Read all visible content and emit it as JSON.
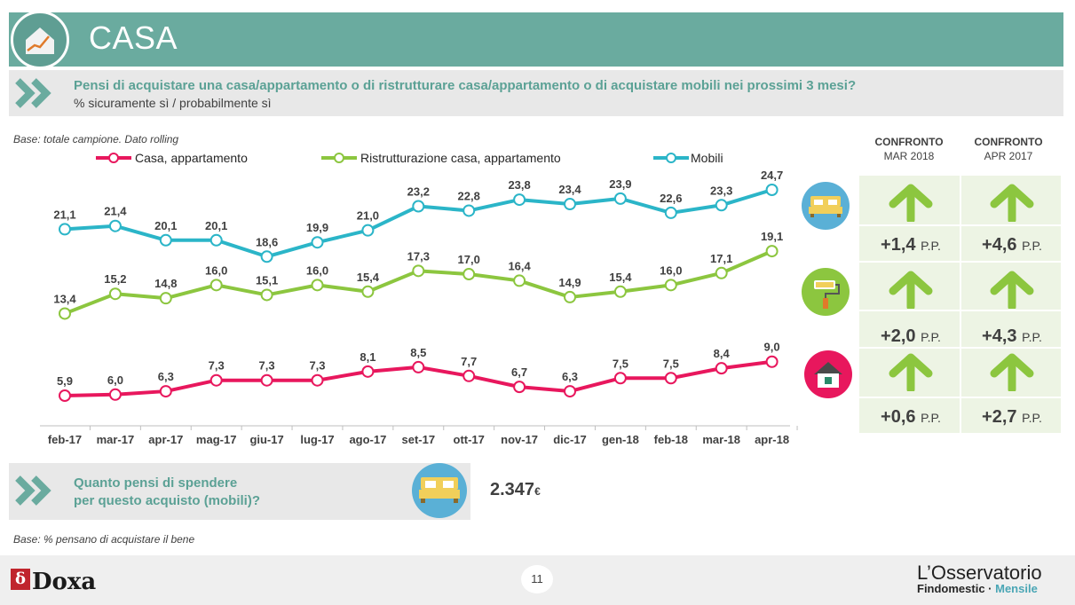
{
  "header": {
    "title": "CASA"
  },
  "question": {
    "text": "Pensi di acquistare una casa/appartamento o di ristrutturare casa/appartamento o di acquistare mobili nei prossimi 3 mesi?",
    "sub": "% sicuramente sì / probabilmente sì"
  },
  "base_note": "Base: totale campione. Dato rolling",
  "base_note2": "Base: % pensano di acquistare il bene",
  "chart_data": {
    "type": "line",
    "categories": [
      "feb-17",
      "mar-17",
      "apr-17",
      "mag-17",
      "giu-17",
      "lug-17",
      "ago-17",
      "set-17",
      "ott-17",
      "nov-17",
      "dic-17",
      "gen-18",
      "feb-18",
      "mar-18",
      "apr-18"
    ],
    "series": [
      {
        "name": "Casa, appartamento",
        "color": "#e8175d",
        "values": [
          5.9,
          6.0,
          6.3,
          7.3,
          7.3,
          7.3,
          8.1,
          8.5,
          7.7,
          6.7,
          6.3,
          7.5,
          7.5,
          8.4,
          9.0
        ],
        "labels": [
          "5,9",
          "6,0",
          "6,3",
          "7,3",
          "7,3",
          "7,3",
          "8,1",
          "8,5",
          "7,7",
          "6,7",
          "6,3",
          "7,5",
          "7,5",
          "8,4",
          "9,0"
        ]
      },
      {
        "name": "Ristrutturazione casa, appartamento",
        "color": "#8cc63f",
        "values": [
          13.4,
          15.2,
          14.8,
          16.0,
          15.1,
          16.0,
          15.4,
          17.3,
          17.0,
          16.4,
          14.9,
          15.4,
          16.0,
          17.1,
          19.1
        ],
        "labels": [
          "13,4",
          "15,2",
          "14,8",
          "16,0",
          "15,1",
          "16,0",
          "15,4",
          "17,3",
          "17,0",
          "16,4",
          "14,9",
          "15,4",
          "16,0",
          "17,1",
          "19,1"
        ]
      },
      {
        "name": "Mobili",
        "color": "#2bb5c8",
        "values": [
          21.1,
          21.4,
          20.1,
          20.1,
          18.6,
          19.9,
          21.0,
          23.2,
          22.8,
          23.8,
          23.4,
          23.9,
          22.6,
          23.3,
          24.7
        ],
        "labels": [
          "21,1",
          "21,4",
          "20,1",
          "20,1",
          "18,6",
          "19,9",
          "21,0",
          "23,2",
          "22,8",
          "23,8",
          "23,4",
          "23,9",
          "22,6",
          "23,3",
          "24,7"
        ]
      }
    ],
    "grid": false,
    "legend_position": "top"
  },
  "comparison": {
    "headers": [
      {
        "title": "CONFRONTO",
        "sub": "MAR 2018"
      },
      {
        "title": "CONFRONTO",
        "sub": "APR 2017"
      }
    ],
    "rows": [
      {
        "icon": "bed-icon",
        "values": [
          "+1,4",
          "+4,6"
        ]
      },
      {
        "icon": "paint-roller-icon",
        "values": [
          "+2,0",
          "+4,3"
        ]
      },
      {
        "icon": "house-icon",
        "values": [
          "+0,6",
          "+2,7"
        ]
      }
    ],
    "unit": "P.P.",
    "arrow_color": "#8cc63f"
  },
  "spend": {
    "question_line1": "Quanto pensi di spendere",
    "question_line2": "per questo acquisto (mobili)?",
    "value": "2.347",
    "currency": "€"
  },
  "footer": {
    "page": "11",
    "brand": "Doxa",
    "brand_mark": "δ",
    "osservatorio": "L’Osservatorio",
    "findomestic": "Findomestic · ",
    "mensile": "Mensile"
  }
}
